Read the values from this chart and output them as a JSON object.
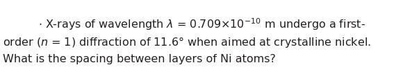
{
  "line1": "X-rays of wavelength $\\lambda$ = 0.709$\\times$10$^{-10}$ m undergo a first-",
  "line2": "order ($n$ = 1) diffraction of 11.6° when aimed at crystalline nickel.",
  "line3": "What is the spacing between layers of Ni atoms?",
  "bullet": ".",
  "bg_color": "#ffffff",
  "text_color": "#231f20",
  "font_size": 11.5,
  "fig_width": 5.93,
  "fig_height": 1.04,
  "dpi": 100
}
